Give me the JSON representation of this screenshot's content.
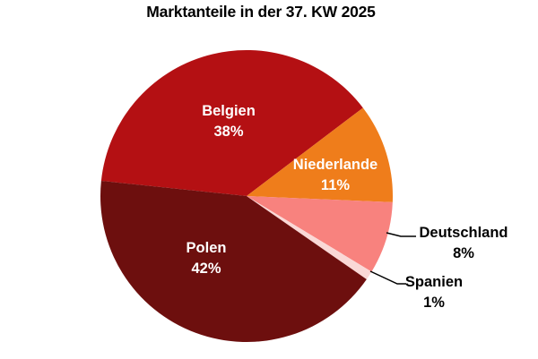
{
  "title": "Marktanteile in der 37. KW 2025",
  "chart_data": {
    "type": "pie",
    "title": "Marktanteile in der 37. KW 2025",
    "unit": "%",
    "start_angle_deg": 174,
    "direction": "clockwise",
    "legend": "none",
    "background_color": "#ffffff",
    "title_color": "#000000",
    "outside_label_color": "#000000",
    "inside_label_color": "#ffffff",
    "slices": [
      {
        "label": "Belgien",
        "value": 38,
        "pct_label": "38%",
        "color": "#b41013",
        "label_style": "inside"
      },
      {
        "label": "Niederlande",
        "value": 11,
        "pct_label": "11%",
        "color": "#ef7d1b",
        "label_style": "inside"
      },
      {
        "label": "Deutschland",
        "value": 8,
        "pct_label": "8%",
        "color": "#f8827e",
        "label_style": "outside"
      },
      {
        "label": "Spanien",
        "value": 1,
        "pct_label": "1%",
        "color": "#fad8d6",
        "label_style": "outside"
      },
      {
        "label": "Polen",
        "value": 42,
        "pct_label": "42%",
        "color": "#6d0f0e",
        "label_style": "inside"
      }
    ]
  }
}
